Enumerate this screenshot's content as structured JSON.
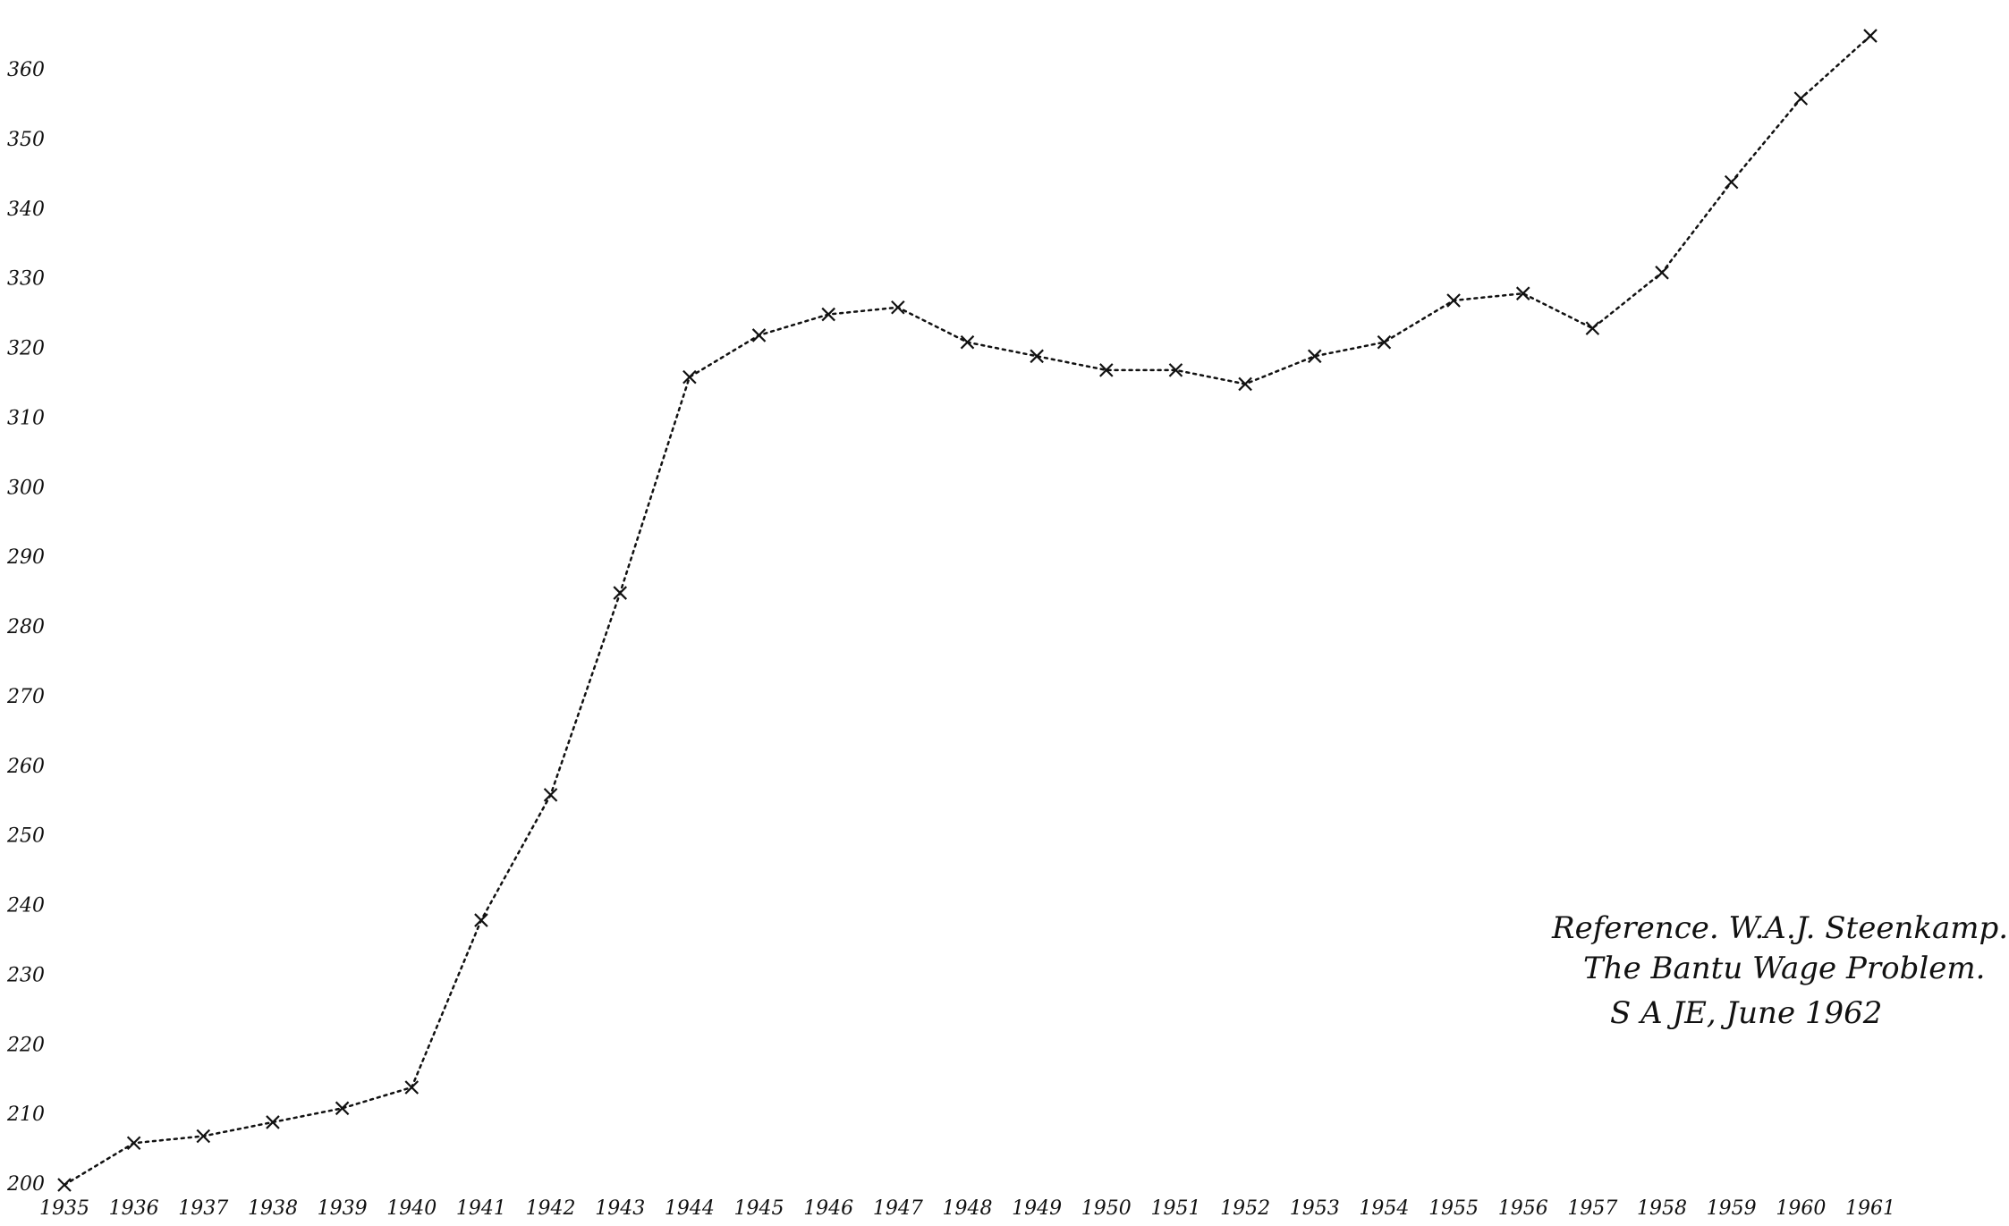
{
  "chart_data": {
    "type": "line",
    "categories": [
      "1935",
      "1936",
      "1937",
      "1938",
      "1939",
      "1940",
      "1941",
      "1942",
      "1943",
      "1944",
      "1945",
      "1946",
      "1947",
      "1948",
      "1949",
      "1950",
      "1951",
      "1952",
      "1953",
      "1954",
      "1955",
      "1956",
      "1957",
      "1958",
      "1959",
      "1960",
      "1961"
    ],
    "values": [
      200,
      206,
      207,
      209,
      211,
      214,
      238,
      256,
      285,
      316,
      322,
      325,
      326,
      321,
      319,
      317,
      317,
      315,
      319,
      321,
      327,
      328,
      323,
      331,
      344,
      356,
      365
    ],
    "color": "#111111",
    "ylim": [
      200,
      360
    ],
    "yticks": [
      200,
      210,
      220,
      230,
      240,
      250,
      260,
      270,
      280,
      290,
      300,
      310,
      320,
      330,
      340,
      350,
      360
    ],
    "grid": false,
    "annotations": [
      "Reference. W.A.J. Steenkamp.",
      "The Bantu Wage Problem.",
      "S A JE, June 1962"
    ]
  }
}
